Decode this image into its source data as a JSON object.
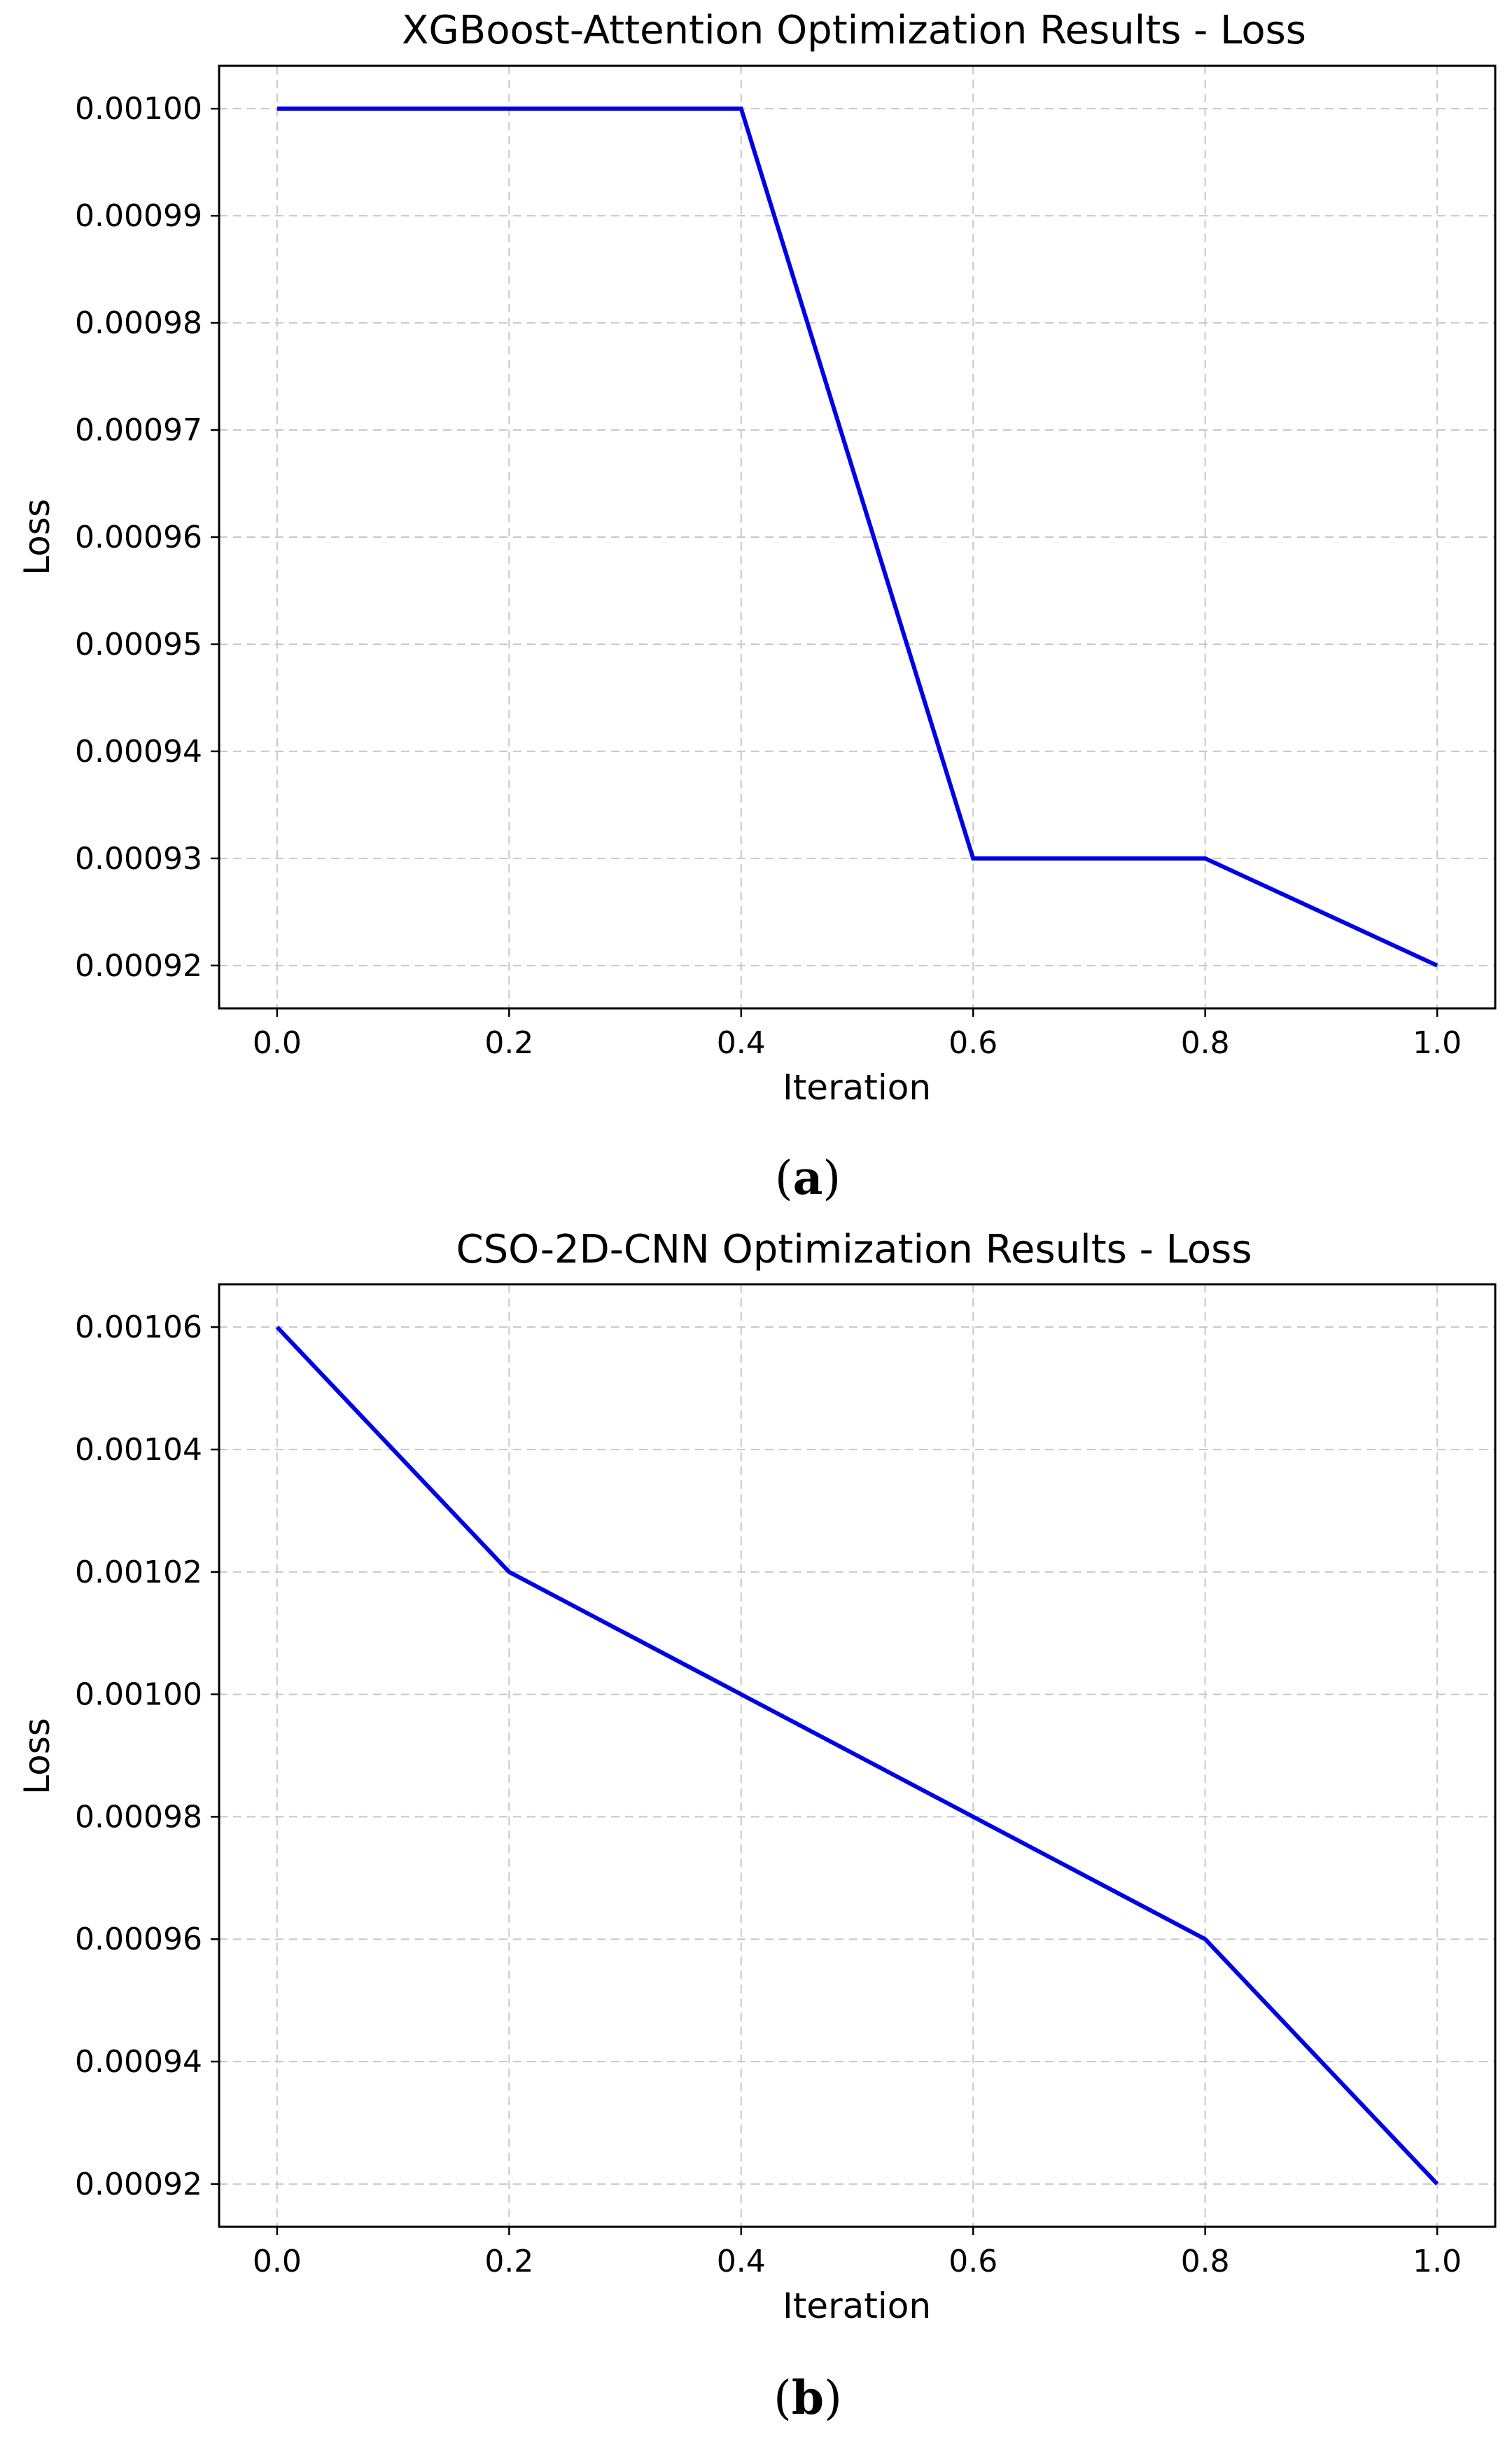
{
  "chart_data": [
    {
      "type": "line",
      "title": "XGBoost-Attention Optimization Results - Loss",
      "xlabel": "Iteration",
      "ylabel": "Loss",
      "x": [
        0.0,
        0.2,
        0.4,
        0.6,
        0.8,
        1.0
      ],
      "xlim": [
        -0.05,
        1.05
      ],
      "ylim": [
        0.000916,
        0.001004
      ],
      "xticks": [
        0.0,
        0.2,
        0.4,
        0.6,
        0.8,
        1.0
      ],
      "xtick_labels": [
        "0.0",
        "0.2",
        "0.4",
        "0.6",
        "0.8",
        "1.0"
      ],
      "yticks": [
        0.00092,
        0.00093,
        0.00094,
        0.00095,
        0.00096,
        0.00097,
        0.00098,
        0.00099,
        0.001
      ],
      "ytick_labels": [
        "0.00092",
        "0.00093",
        "0.00094",
        "0.00095",
        "0.00096",
        "0.00097",
        "0.00098",
        "0.00099",
        "0.00100"
      ],
      "grid": true,
      "series": [
        {
          "name": "Loss",
          "color": "#0000e6",
          "values": [
            0.001,
            0.001,
            0.001,
            0.00093,
            0.00093,
            0.00092
          ]
        }
      ],
      "caption_open": "(",
      "caption_letter": "a",
      "caption_close": ")"
    },
    {
      "type": "line",
      "title": "CSO-2D-CNN Optimization Results - Loss",
      "xlabel": "Iteration",
      "ylabel": "Loss",
      "x": [
        0.0,
        0.2,
        0.4,
        0.6,
        0.8,
        1.0
      ],
      "xlim": [
        -0.05,
        1.05
      ],
      "ylim": [
        0.000913,
        0.001067
      ],
      "xticks": [
        0.0,
        0.2,
        0.4,
        0.6,
        0.8,
        1.0
      ],
      "xtick_labels": [
        "0.0",
        "0.2",
        "0.4",
        "0.6",
        "0.8",
        "1.0"
      ],
      "yticks": [
        0.00092,
        0.00094,
        0.00096,
        0.00098,
        0.001,
        0.00102,
        0.00104,
        0.00106
      ],
      "ytick_labels": [
        "0.00092",
        "0.00094",
        "0.00096",
        "0.00098",
        "0.00100",
        "0.00102",
        "0.00104",
        "0.00106"
      ],
      "grid": true,
      "series": [
        {
          "name": "Loss",
          "color": "#0000e6",
          "values": [
            0.00106,
            0.00102,
            0.001,
            0.00098,
            0.00096,
            0.00092
          ]
        }
      ],
      "caption_open": "(",
      "caption_letter": "b",
      "caption_close": ")"
    }
  ]
}
